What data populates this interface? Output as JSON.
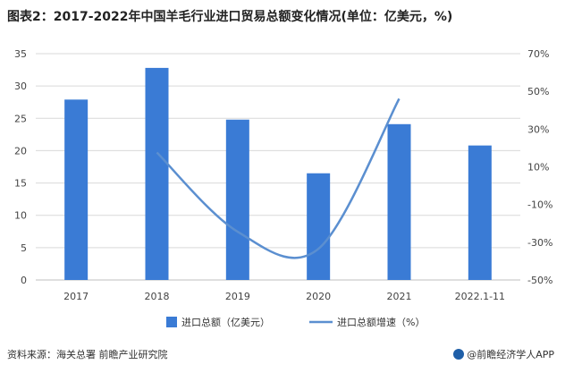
{
  "title": "图表2：2017-2022年中国羊毛行业进口贸易总额变化情况(单位：亿美元，%)",
  "footer": {
    "source": "资料来源：海关总署 前瞻产业研究院",
    "brand": "@前瞻经济学人APP"
  },
  "colors": {
    "bar": "#3a7bd5",
    "line": "#5b8fd0",
    "grid": "#d9d9d9",
    "axis": "#bfbfbf"
  },
  "chart_data": {
    "type": "bar",
    "categories": [
      "2017",
      "2018",
      "2019",
      "2020",
      "2021",
      "2022.1-11"
    ],
    "series": [
      {
        "name": "进口总额（亿美元）",
        "type": "bar",
        "axis": "left",
        "values": [
          27.9,
          32.8,
          24.8,
          16.5,
          24.1,
          20.8
        ]
      },
      {
        "name": "进口总额增速（%）",
        "type": "line",
        "axis": "right",
        "values": [
          null,
          17.6,
          -24.4,
          -33.5,
          46.1,
          null
        ]
      }
    ],
    "yleft": {
      "min": 0,
      "max": 35,
      "ticks": [
        0,
        5,
        10,
        15,
        20,
        25,
        30,
        35
      ]
    },
    "yright": {
      "min": -50,
      "max": 70,
      "ticks": [
        -50,
        -30,
        -10,
        10,
        30,
        50,
        70
      ],
      "tick_labels": [
        "-50%",
        "-30%",
        "-10%",
        "10%",
        "30%",
        "50%",
        "70%"
      ]
    },
    "grid": true,
    "legend": "bottom"
  }
}
